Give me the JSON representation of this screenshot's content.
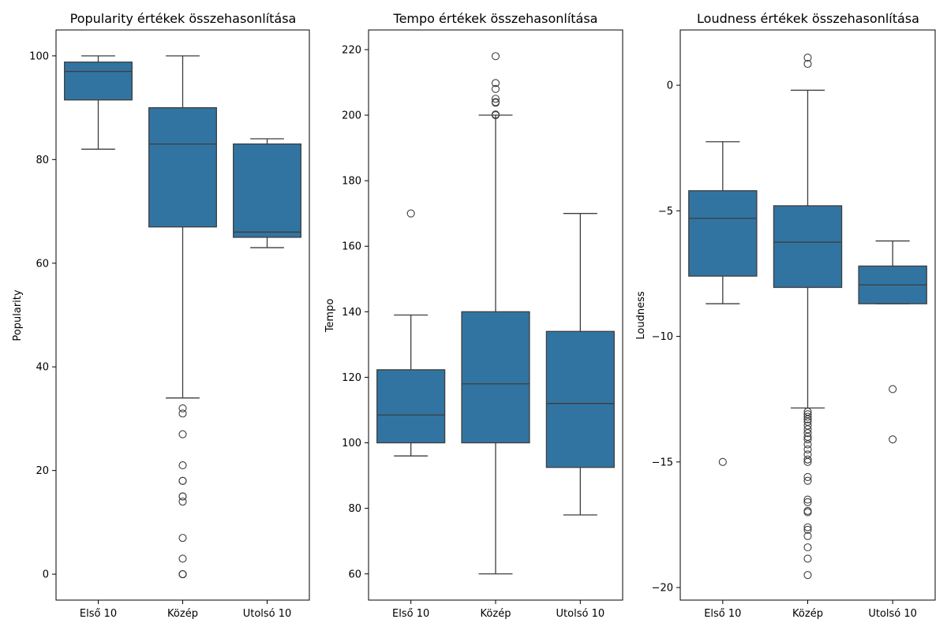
{
  "figure": {
    "box_color": "#3274a1",
    "edge_color": "#3d3d3d"
  },
  "chart_data": [
    {
      "type": "box",
      "title": "Popularity értékek összehasonlítása",
      "xlabel": "",
      "ylabel": "Popularity",
      "ylim": [
        -5,
        105
      ],
      "yticks": [
        0,
        20,
        40,
        60,
        80,
        100
      ],
      "categories": [
        "Első 10",
        "Közép",
        "Utolsó 10"
      ],
      "boxes": [
        {
          "category": "Első 10",
          "whisker_low": 82,
          "q1": 91.5,
          "median": 97,
          "q3": 98.8,
          "whisker_high": 100,
          "outliers": []
        },
        {
          "category": "Közép",
          "whisker_low": 34,
          "q1": 67,
          "median": 83,
          "q3": 90,
          "whisker_high": 100,
          "outliers": [
            32,
            31,
            27,
            21,
            18,
            18,
            15,
            15,
            14,
            7,
            3,
            0,
            0,
            0
          ]
        },
        {
          "category": "Utolsó 10",
          "whisker_low": 63,
          "q1": 65,
          "median": 66,
          "q3": 83,
          "whisker_high": 84,
          "outliers": []
        }
      ]
    },
    {
      "type": "box",
      "title": "Tempo értékek összehasonlítása",
      "xlabel": "",
      "ylabel": "Tempo",
      "ylim": [
        52,
        226
      ],
      "yticks": [
        60,
        80,
        100,
        120,
        140,
        160,
        180,
        200,
        220
      ],
      "categories": [
        "Első 10",
        "Közép",
        "Utolsó 10"
      ],
      "boxes": [
        {
          "category": "Első 10",
          "whisker_low": 96,
          "q1": 100,
          "median": 108.5,
          "q3": 122.3,
          "whisker_high": 139,
          "outliers": [
            170
          ]
        },
        {
          "category": "Közép",
          "whisker_low": 60,
          "q1": 100,
          "median": 118,
          "q3": 140,
          "whisker_high": 200,
          "outliers": [
            218,
            209.8,
            208,
            205,
            204,
            203.8,
            200.2,
            200
          ]
        },
        {
          "category": "Utolsó 10",
          "whisker_low": 78,
          "q1": 92.5,
          "median": 112,
          "q3": 134,
          "whisker_high": 170,
          "outliers": []
        }
      ]
    },
    {
      "type": "box",
      "title": "Loudness értékek összehasonlítása",
      "xlabel": "",
      "ylabel": "Loudness",
      "ylim": [
        -20.5,
        2.2
      ],
      "yticks": [
        0,
        -5,
        -10,
        -15,
        -20
      ],
      "categories": [
        "Első 10",
        "Közép",
        "Utolsó 10"
      ],
      "boxes": [
        {
          "category": "Első 10",
          "whisker_low": -8.7,
          "q1": -7.6,
          "median": -5.3,
          "q3": -4.2,
          "whisker_high": -2.25,
          "outliers": [
            -15
          ]
        },
        {
          "category": "Közép",
          "whisker_low": -12.85,
          "q1": -8.05,
          "median": -6.25,
          "q3": -4.8,
          "whisker_high": -0.2,
          "outliers": [
            1.1,
            0.85,
            -13.0,
            -13.1,
            -13.2,
            -13.3,
            -13.4,
            -13.55,
            -13.7,
            -13.85,
            -14.0,
            -14.1,
            -14.3,
            -14.5,
            -14.7,
            -14.9,
            -15.0,
            -15.6,
            -15.75,
            -16.5,
            -16.6,
            -16.95,
            -17.0,
            -17.6,
            -17.7,
            -17.95,
            -18.4,
            -18.85,
            -19.5
          ]
        },
        {
          "category": "Utolsó 10",
          "whisker_low": -8.7,
          "q1": -8.7,
          "median": -7.95,
          "q3": -7.2,
          "whisker_high": -6.2,
          "outliers": [
            -12.1,
            -14.1
          ]
        }
      ]
    }
  ]
}
